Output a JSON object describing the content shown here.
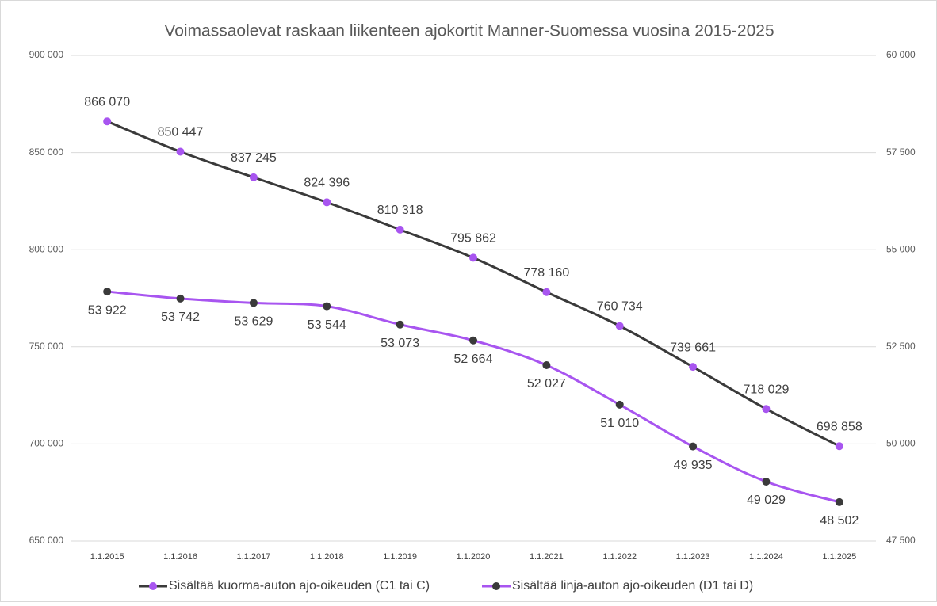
{
  "chart_data": {
    "type": "line",
    "title": "Voimassaolevat raskaan liikenteen ajokortit Manner-Suomessa vuosina 2015-2025",
    "categories": [
      "1.1.2015",
      "1.1.2016",
      "1.1.2017",
      "1.1.2018",
      "1.1.2019",
      "1.1.2020",
      "1.1.2021",
      "1.1.2022",
      "1.1.2023",
      "1.1.2024",
      "1.1.2025"
    ],
    "series": [
      {
        "name": "Sisältää kuorma-auton ajo-oikeuden (C1 tai C)",
        "color": "#3a3a3a",
        "marker_color": "#a855f0",
        "axis": "y",
        "values": [
          866070,
          850447,
          837245,
          824396,
          810318,
          795862,
          778160,
          760734,
          739661,
          718029,
          698858
        ],
        "value_labels": [
          "866 070",
          "850 447",
          "837 245",
          "824 396",
          "810 318",
          "795 862",
          "778 160",
          "760 734",
          "739 661",
          "718 029",
          "698 858"
        ]
      },
      {
        "name": "Sisältää linja-auton ajo-oikeuden (D1 tai D)",
        "color": "#a855f0",
        "marker_color": "#3a3a3a",
        "axis": "y2",
        "values": [
          53922,
          53742,
          53629,
          53544,
          53073,
          52664,
          52027,
          51010,
          49935,
          49029,
          48502
        ],
        "value_labels": [
          "53 922",
          "53 742",
          "53 629",
          "53 544",
          "53 073",
          "52 664",
          "52 027",
          "51 010",
          "49 935",
          "49 029",
          "48 502"
        ]
      }
    ],
    "ylim": [
      650000,
      900000
    ],
    "yticks": [
      {
        "value": 650000,
        "label": "650 000"
      },
      {
        "value": 700000,
        "label": "700 000"
      },
      {
        "value": 750000,
        "label": "750 000"
      },
      {
        "value": 800000,
        "label": "800 000"
      },
      {
        "value": 850000,
        "label": "850 000"
      },
      {
        "value": 900000,
        "label": "900 000"
      }
    ],
    "y2lim": [
      47500,
      60000
    ],
    "y2ticks": [
      {
        "value": 47500,
        "label": "47 500"
      },
      {
        "value": 50000,
        "label": "50 000"
      },
      {
        "value": 52500,
        "label": "52 500"
      },
      {
        "value": 55000,
        "label": "55 000"
      },
      {
        "value": 57500,
        "label": "57 500"
      },
      {
        "value": 60000,
        "label": "60 000"
      }
    ],
    "grid": true,
    "smooth": true,
    "legend": "bottom"
  }
}
